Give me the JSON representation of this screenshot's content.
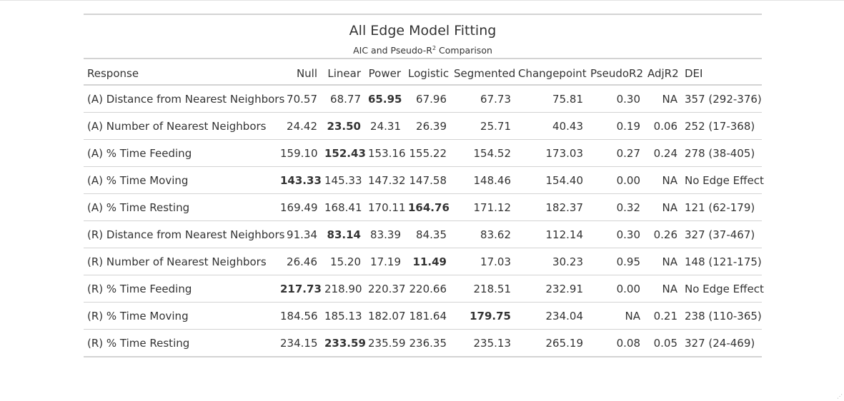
{
  "table": {
    "title": "All Edge Model Fitting",
    "subtitle_prefix": "AIC and Pseudo-R",
    "subtitle_sup": "2",
    "subtitle_suffix": " Comparison",
    "columns": [
      "Response",
      "Null",
      "Linear",
      "Power",
      "Logistic",
      "Segmented",
      "Changepoint",
      "PseudoR2",
      "AdjR2",
      "DEI"
    ],
    "rows": [
      {
        "cells": [
          "(A) Distance from Nearest Neighbors",
          "70.57",
          "68.77",
          "65.95",
          "67.96",
          "67.73",
          "75.81",
          "0.30",
          "NA",
          "357 (292-376)"
        ],
        "bold": 3
      },
      {
        "cells": [
          "(A) Number of Nearest Neighbors",
          "24.42",
          "23.50",
          "24.31",
          "26.39",
          "25.71",
          "40.43",
          "0.19",
          "0.06",
          "252 (17-368)"
        ],
        "bold": 2
      },
      {
        "cells": [
          "(A) % Time Feeding",
          "159.10",
          "152.43",
          "153.16",
          "155.22",
          "154.52",
          "173.03",
          "0.27",
          "0.24",
          "278 (38-405)"
        ],
        "bold": 2
      },
      {
        "cells": [
          "(A) % Time Moving",
          "143.33",
          "145.33",
          "147.32",
          "147.58",
          "148.46",
          "154.40",
          "0.00",
          "NA",
          "No Edge Effect"
        ],
        "bold": 1
      },
      {
        "cells": [
          "(A) % Time Resting",
          "169.49",
          "168.41",
          "170.11",
          "164.76",
          "171.12",
          "182.37",
          "0.32",
          "NA",
          "121 (62-179)"
        ],
        "bold": 4
      },
      {
        "cells": [
          "(R) Distance from Nearest Neighbors",
          "91.34",
          "83.14",
          "83.39",
          "84.35",
          "83.62",
          "112.14",
          "0.30",
          "0.26",
          "327 (37-467)"
        ],
        "bold": 2
      },
      {
        "cells": [
          "(R) Number of Nearest Neighbors",
          "26.46",
          "15.20",
          "17.19",
          "11.49",
          "17.03",
          "30.23",
          "0.95",
          "NA",
          "148 (121-175)"
        ],
        "bold": 4
      },
      {
        "cells": [
          "(R) % Time Feeding",
          "217.73",
          "218.90",
          "220.37",
          "220.66",
          "218.51",
          "232.91",
          "0.00",
          "NA",
          "No Edge Effect"
        ],
        "bold": 1
      },
      {
        "cells": [
          "(R) % Time Moving",
          "184.56",
          "185.13",
          "182.07",
          "181.64",
          "179.75",
          "234.04",
          "NA",
          "0.21",
          "238 (110-365)"
        ],
        "bold": 5
      },
      {
        "cells": [
          "(R) % Time Resting",
          "234.15",
          "233.59",
          "235.59",
          "236.35",
          "235.13",
          "265.19",
          "0.08",
          "0.05",
          "327 (24-469)"
        ],
        "bold": 2
      }
    ]
  }
}
